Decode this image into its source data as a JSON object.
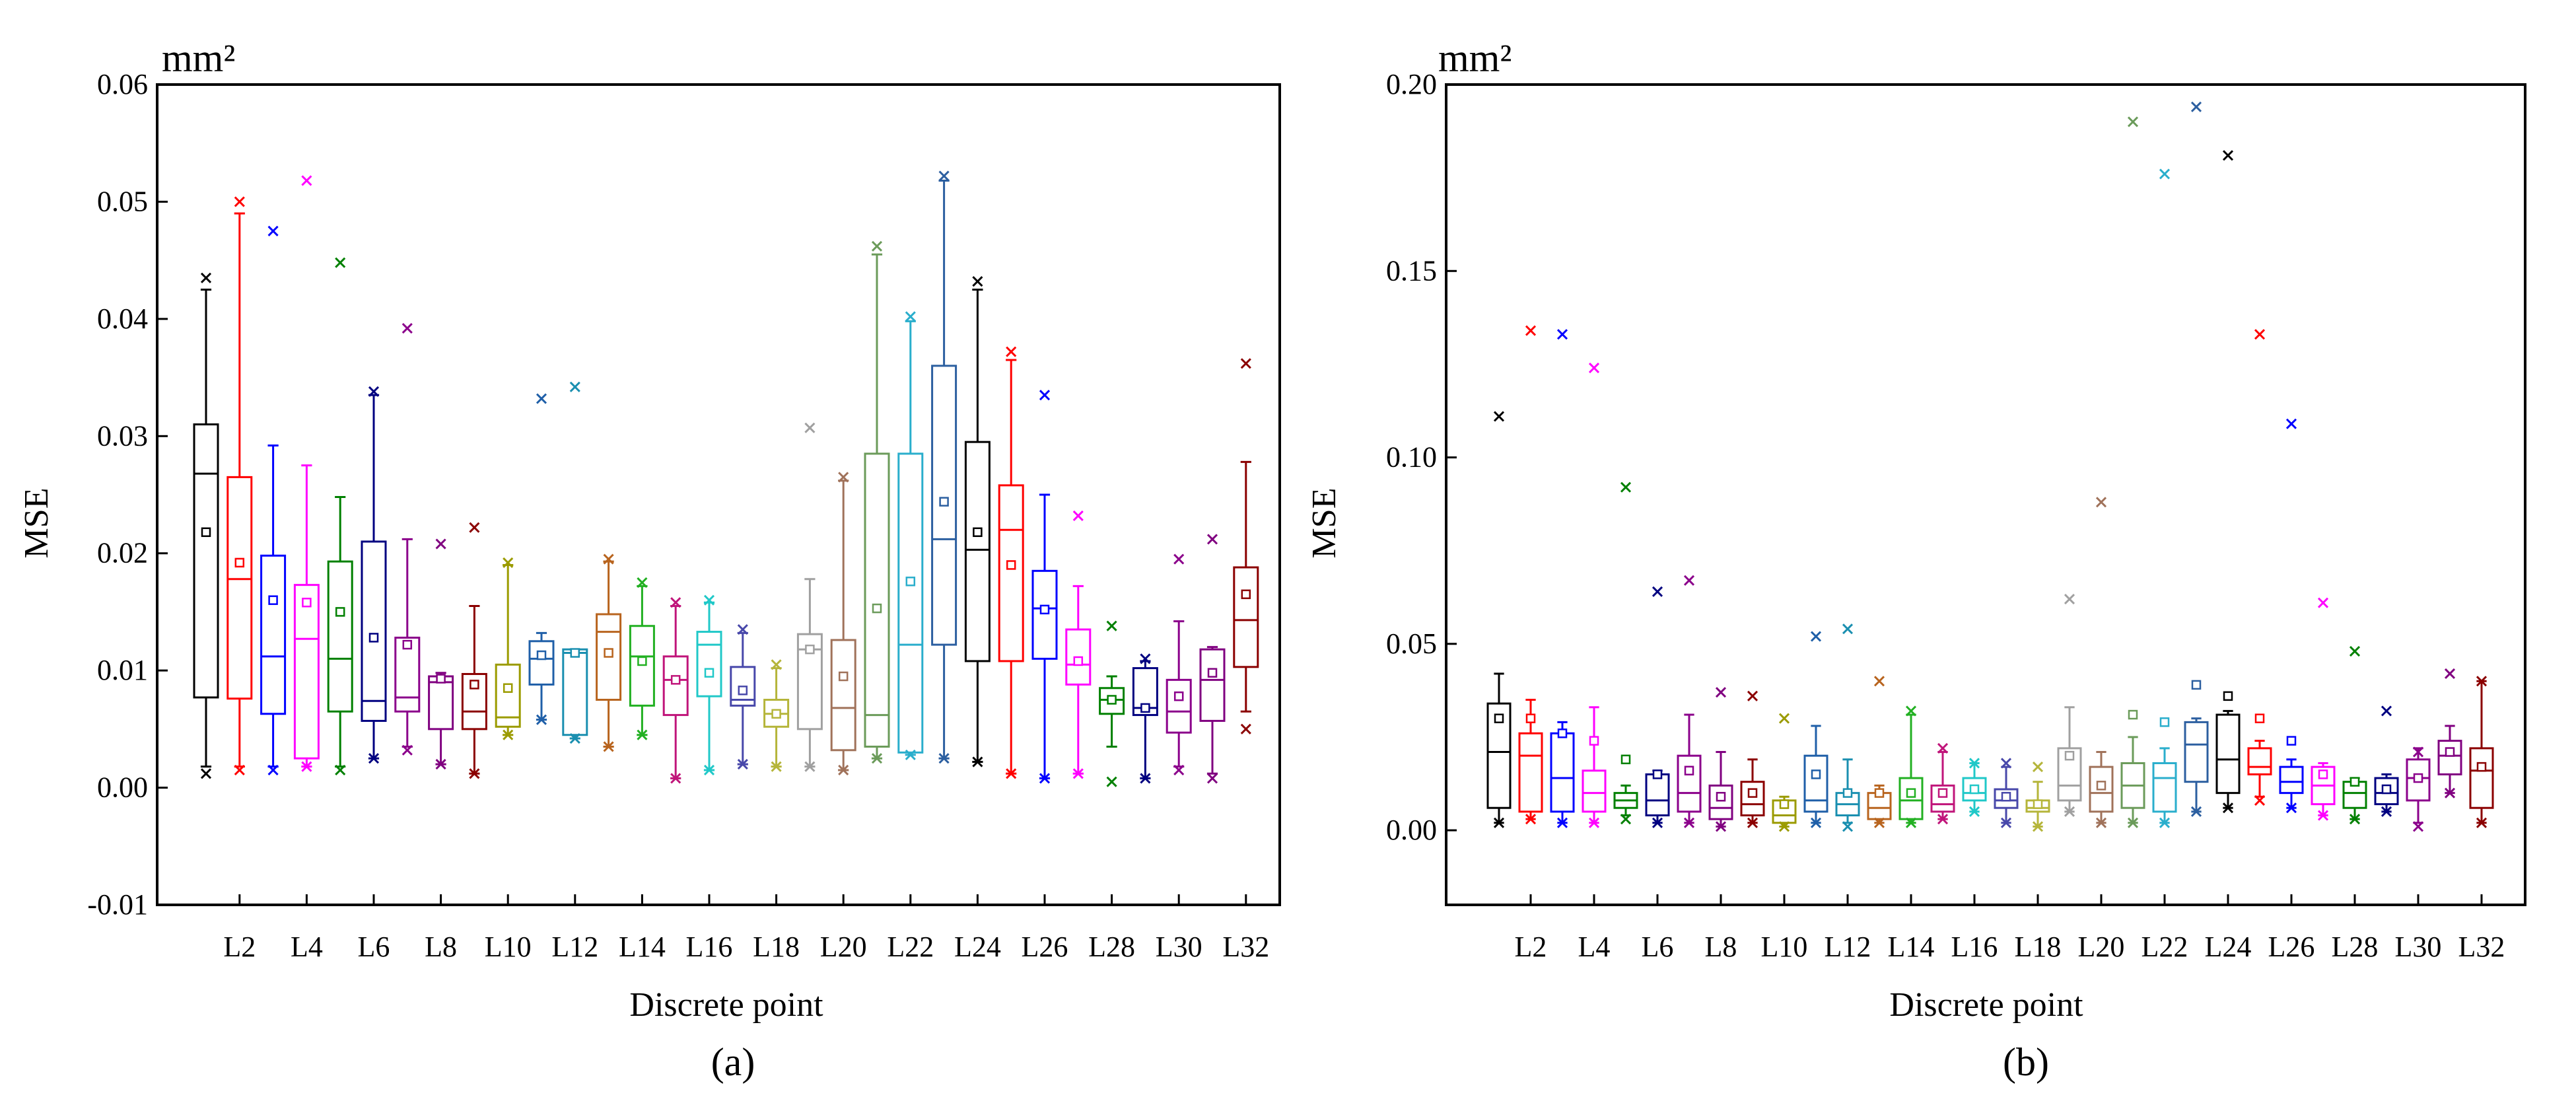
{
  "chart_data": [
    {
      "type": "box",
      "panel_label": "(a)",
      "unit": "mm²",
      "xlabel": "Discrete point",
      "ylabel": "MSE",
      "ylim": [
        -0.01,
        0.06
      ],
      "yticks": [
        "-0.01",
        "0.00",
        "0.01",
        "0.02",
        "0.03",
        "0.04",
        "0.05",
        "0.06"
      ],
      "ytick_values": [
        -0.01,
        0,
        0.01,
        0.02,
        0.03,
        0.04,
        0.05,
        0.06
      ],
      "xtick_labels": [
        "L2",
        "L4",
        "L6",
        "L8",
        "L10",
        "L12",
        "L14",
        "L16",
        "L18",
        "L20",
        "L22",
        "L24",
        "L26",
        "L28",
        "L30",
        "L32"
      ],
      "boxes": [
        {
          "color": "#000000",
          "q1": 0.0077,
          "median": 0.0268,
          "q3": 0.031,
          "wlo": 0.0018,
          "whi": 0.0425,
          "mean": 0.0218,
          "min": 0.0012,
          "max": 0.0435
        },
        {
          "color": "#ff0000",
          "q1": 0.0076,
          "median": 0.0178,
          "q3": 0.0265,
          "wlo": 0.0018,
          "whi": 0.049,
          "mean": 0.0192,
          "min": 0.0015,
          "max": 0.05
        },
        {
          "color": "#0000ff",
          "q1": 0.0063,
          "median": 0.0112,
          "q3": 0.0198,
          "wlo": 0.0018,
          "whi": 0.0292,
          "mean": 0.016,
          "min": 0.0015,
          "max": 0.0475
        },
        {
          "color": "#ff00ff",
          "q1": 0.0025,
          "median": 0.0127,
          "q3": 0.0173,
          "wlo": 0.0018,
          "whi": 0.0275,
          "mean": 0.0158,
          "min": 0.0018,
          "max": 0.0518
        },
        {
          "color": "#008000",
          "q1": 0.0065,
          "median": 0.011,
          "q3": 0.0193,
          "wlo": 0.0018,
          "whi": 0.0248,
          "mean": 0.015,
          "min": 0.0015,
          "max": 0.0448
        },
        {
          "color": "#000080",
          "q1": 0.0057,
          "median": 0.0074,
          "q3": 0.021,
          "wlo": 0.0025,
          "whi": 0.0335,
          "mean": 0.0128,
          "min": 0.0025,
          "max": 0.0338
        },
        {
          "color": "#8b008b",
          "q1": 0.0065,
          "median": 0.0077,
          "q3": 0.0128,
          "wlo": 0.0035,
          "whi": 0.0212,
          "mean": 0.0122,
          "min": 0.0032,
          "max": 0.0392
        },
        {
          "color": "#800080",
          "q1": 0.005,
          "median": 0.009,
          "q3": 0.0095,
          "wlo": 0.002,
          "whi": 0.0098,
          "mean": 0.0093,
          "min": 0.002,
          "max": 0.0208
        },
        {
          "color": "#8b0000",
          "q1": 0.005,
          "median": 0.0065,
          "q3": 0.0097,
          "wlo": 0.0012,
          "whi": 0.0155,
          "mean": 0.0088,
          "min": 0.0012,
          "max": 0.0222
        },
        {
          "color": "#9b9b00",
          "q1": 0.0052,
          "median": 0.006,
          "q3": 0.0105,
          "wlo": 0.0045,
          "whi": 0.019,
          "mean": 0.0085,
          "min": 0.0045,
          "max": 0.0192
        },
        {
          "color": "#1f5fa8",
          "q1": 0.0088,
          "median": 0.011,
          "q3": 0.0125,
          "wlo": 0.0058,
          "whi": 0.0132,
          "mean": 0.0113,
          "min": 0.0058,
          "max": 0.0332
        },
        {
          "color": "#1a8fb0",
          "q1": 0.0045,
          "median": 0.0115,
          "q3": 0.0118,
          "wlo": 0.0042,
          "whi": 0.0118,
          "mean": 0.0115,
          "min": 0.0042,
          "max": 0.0342
        },
        {
          "color": "#b8641e",
          "q1": 0.0075,
          "median": 0.0133,
          "q3": 0.0148,
          "wlo": 0.0035,
          "whi": 0.0193,
          "mean": 0.0115,
          "min": 0.0035,
          "max": 0.0195
        },
        {
          "color": "#22b022",
          "q1": 0.007,
          "median": 0.0112,
          "q3": 0.0138,
          "wlo": 0.0045,
          "whi": 0.0172,
          "mean": 0.0108,
          "min": 0.0045,
          "max": 0.0175
        },
        {
          "color": "#c0157a",
          "q1": 0.0062,
          "median": 0.0092,
          "q3": 0.0112,
          "wlo": 0.0008,
          "whi": 0.0155,
          "mean": 0.0092,
          "min": 0.0008,
          "max": 0.0158
        },
        {
          "color": "#20c8c8",
          "q1": 0.0078,
          "median": 0.0122,
          "q3": 0.0133,
          "wlo": 0.0015,
          "whi": 0.0158,
          "mean": 0.0098,
          "min": 0.0015,
          "max": 0.016
        },
        {
          "color": "#4848aa",
          "q1": 0.007,
          "median": 0.0075,
          "q3": 0.0103,
          "wlo": 0.002,
          "whi": 0.0132,
          "mean": 0.0083,
          "min": 0.002,
          "max": 0.0135
        },
        {
          "color": "#b5b53a",
          "q1": 0.0052,
          "median": 0.0063,
          "q3": 0.0075,
          "wlo": 0.0018,
          "whi": 0.0102,
          "mean": 0.0063,
          "min": 0.0018,
          "max": 0.0105
        },
        {
          "color": "#a0a0a0",
          "q1": 0.005,
          "median": 0.0118,
          "q3": 0.0131,
          "wlo": 0.0018,
          "whi": 0.0178,
          "mean": 0.0118,
          "min": 0.0018,
          "max": 0.0307
        },
        {
          "color": "#a0725a",
          "q1": 0.0032,
          "median": 0.0068,
          "q3": 0.0126,
          "wlo": 0.0015,
          "whi": 0.0262,
          "mean": 0.0095,
          "min": 0.0015,
          "max": 0.0265
        },
        {
          "color": "#6b9b5a",
          "q1": 0.0035,
          "median": 0.0062,
          "q3": 0.0285,
          "wlo": 0.0025,
          "whi": 0.0455,
          "mean": 0.0153,
          "min": 0.0025,
          "max": 0.0462
        },
        {
          "color": "#2aaecc",
          "q1": 0.003,
          "median": 0.0122,
          "q3": 0.0285,
          "wlo": 0.0028,
          "whi": 0.0398,
          "mean": 0.0176,
          "min": 0.0028,
          "max": 0.0402
        },
        {
          "color": "#2c5fa0",
          "q1": 0.0122,
          "median": 0.0212,
          "q3": 0.036,
          "wlo": 0.0025,
          "whi": 0.0518,
          "mean": 0.0244,
          "min": 0.0025,
          "max": 0.0522
        },
        {
          "color": "#000000",
          "q1": 0.0108,
          "median": 0.0203,
          "q3": 0.0295,
          "wlo": 0.0022,
          "whi": 0.0425,
          "mean": 0.0218,
          "min": 0.0022,
          "max": 0.0432
        },
        {
          "color": "#ff0000",
          "q1": 0.0108,
          "median": 0.022,
          "q3": 0.0258,
          "wlo": 0.0012,
          "whi": 0.0365,
          "mean": 0.019,
          "min": 0.0012,
          "max": 0.0372
        },
        {
          "color": "#0000ff",
          "q1": 0.011,
          "median": 0.0153,
          "q3": 0.0185,
          "wlo": 0.0008,
          "whi": 0.025,
          "mean": 0.0152,
          "min": 0.0008,
          "max": 0.0335
        },
        {
          "color": "#ff00ff",
          "q1": 0.0088,
          "median": 0.0105,
          "q3": 0.0135,
          "wlo": 0.0012,
          "whi": 0.0172,
          "mean": 0.0108,
          "min": 0.0012,
          "max": 0.0232
        },
        {
          "color": "#008000",
          "q1": 0.0063,
          "median": 0.0075,
          "q3": 0.0085,
          "wlo": 0.0035,
          "whi": 0.0095,
          "mean": 0.0075,
          "min": 0.0005,
          "max": 0.0138
        },
        {
          "color": "#000080",
          "q1": 0.0062,
          "median": 0.0068,
          "q3": 0.0102,
          "wlo": 0.0008,
          "whi": 0.0108,
          "mean": 0.0068,
          "min": 0.0008,
          "max": 0.011
        },
        {
          "color": "#8b008b",
          "q1": 0.0047,
          "median": 0.0065,
          "q3": 0.0092,
          "wlo": 0.0018,
          "whi": 0.0142,
          "mean": 0.0078,
          "min": 0.0015,
          "max": 0.0195
        },
        {
          "color": "#800080",
          "q1": 0.0057,
          "median": 0.0092,
          "q3": 0.0118,
          "wlo": 0.0012,
          "whi": 0.012,
          "mean": 0.0098,
          "min": 0.0008,
          "max": 0.0212
        },
        {
          "color": "#8b0000",
          "q1": 0.0103,
          "median": 0.0143,
          "q3": 0.0188,
          "wlo": 0.0065,
          "whi": 0.0278,
          "mean": 0.0165,
          "min": 0.005,
          "max": 0.0362
        }
      ]
    },
    {
      "type": "box",
      "panel_label": "(b)",
      "unit": "mm²",
      "xlabel": "Discrete point",
      "ylabel": "MSE",
      "ylim": [
        -0.02,
        0.2
      ],
      "yticks": [
        "0.00",
        "0.05",
        "0.10",
        "0.15",
        "0.20"
      ],
      "ytick_values": [
        0,
        0.05,
        0.1,
        0.15,
        0.2
      ],
      "xtick_labels": [
        "L2",
        "L4",
        "L6",
        "L8",
        "L10",
        "L12",
        "L14",
        "L16",
        "L18",
        "L20",
        "L22",
        "L24",
        "L26",
        "L28",
        "L30",
        "L32"
      ],
      "boxes": [
        {
          "color": "#000000",
          "q1": 0.006,
          "median": 0.021,
          "q3": 0.034,
          "wlo": 0.002,
          "whi": 0.042,
          "mean": 0.03,
          "min": 0.002,
          "max": 0.111
        },
        {
          "color": "#ff0000",
          "q1": 0.005,
          "median": 0.02,
          "q3": 0.026,
          "wlo": 0.003,
          "whi": 0.035,
          "mean": 0.03,
          "min": 0.003,
          "max": 0.134
        },
        {
          "color": "#0000ff",
          "q1": 0.005,
          "median": 0.014,
          "q3": 0.026,
          "wlo": 0.002,
          "whi": 0.029,
          "mean": 0.026,
          "min": 0.002,
          "max": 0.133
        },
        {
          "color": "#ff00ff",
          "q1": 0.005,
          "median": 0.01,
          "q3": 0.016,
          "wlo": 0.002,
          "whi": 0.033,
          "mean": 0.024,
          "min": 0.002,
          "max": 0.124
        },
        {
          "color": "#008000",
          "q1": 0.006,
          "median": 0.008,
          "q3": 0.01,
          "wlo": 0.004,
          "whi": 0.012,
          "mean": 0.019,
          "min": 0.003,
          "max": 0.092
        },
        {
          "color": "#000080",
          "q1": 0.004,
          "median": 0.008,
          "q3": 0.015,
          "wlo": 0.002,
          "whi": 0.016,
          "mean": 0.015,
          "min": 0.002,
          "max": 0.064
        },
        {
          "color": "#8b008b",
          "q1": 0.005,
          "median": 0.01,
          "q3": 0.02,
          "wlo": 0.002,
          "whi": 0.031,
          "mean": 0.016,
          "min": 0.002,
          "max": 0.067
        },
        {
          "color": "#800080",
          "q1": 0.003,
          "median": 0.006,
          "q3": 0.012,
          "wlo": 0.001,
          "whi": 0.021,
          "mean": 0.009,
          "min": 0.001,
          "max": 0.037
        },
        {
          "color": "#8b0000",
          "q1": 0.004,
          "median": 0.007,
          "q3": 0.013,
          "wlo": 0.002,
          "whi": 0.019,
          "mean": 0.01,
          "min": 0.002,
          "max": 0.036
        },
        {
          "color": "#9b9b00",
          "q1": 0.002,
          "median": 0.004,
          "q3": 0.008,
          "wlo": 0.001,
          "whi": 0.009,
          "mean": 0.007,
          "min": 0.001,
          "max": 0.03
        },
        {
          "color": "#1f5fa8",
          "q1": 0.005,
          "median": 0.008,
          "q3": 0.02,
          "wlo": 0.002,
          "whi": 0.028,
          "mean": 0.015,
          "min": 0.002,
          "max": 0.052
        },
        {
          "color": "#1a8fb0",
          "q1": 0.004,
          "median": 0.007,
          "q3": 0.01,
          "wlo": 0.002,
          "whi": 0.019,
          "mean": 0.01,
          "min": 0.001,
          "max": 0.054
        },
        {
          "color": "#b8641e",
          "q1": 0.003,
          "median": 0.006,
          "q3": 0.01,
          "wlo": 0.002,
          "whi": 0.012,
          "mean": 0.01,
          "min": 0.002,
          "max": 0.04
        },
        {
          "color": "#22b022",
          "q1": 0.003,
          "median": 0.008,
          "q3": 0.014,
          "wlo": 0.002,
          "whi": 0.031,
          "mean": 0.01,
          "min": 0.002,
          "max": 0.032
        },
        {
          "color": "#c0157a",
          "q1": 0.005,
          "median": 0.007,
          "q3": 0.012,
          "wlo": 0.003,
          "whi": 0.021,
          "mean": 0.01,
          "min": 0.003,
          "max": 0.022
        },
        {
          "color": "#20c8c8",
          "q1": 0.008,
          "median": 0.01,
          "q3": 0.014,
          "wlo": 0.005,
          "whi": 0.018,
          "mean": 0.011,
          "min": 0.005,
          "max": 0.018
        },
        {
          "color": "#4848aa",
          "q1": 0.006,
          "median": 0.008,
          "q3": 0.011,
          "wlo": 0.002,
          "whi": 0.017,
          "mean": 0.009,
          "min": 0.002,
          "max": 0.018
        },
        {
          "color": "#b5b53a",
          "q1": 0.005,
          "median": 0.006,
          "q3": 0.008,
          "wlo": 0.001,
          "whi": 0.013,
          "mean": 0.007,
          "min": 0.001,
          "max": 0.017
        },
        {
          "color": "#a0a0a0",
          "q1": 0.008,
          "median": 0.012,
          "q3": 0.022,
          "wlo": 0.005,
          "whi": 0.033,
          "mean": 0.02,
          "min": 0.005,
          "max": 0.062
        },
        {
          "color": "#a0725a",
          "q1": 0.005,
          "median": 0.01,
          "q3": 0.017,
          "wlo": 0.002,
          "whi": 0.021,
          "mean": 0.012,
          "min": 0.002,
          "max": 0.088
        },
        {
          "color": "#6b9b5a",
          "q1": 0.006,
          "median": 0.012,
          "q3": 0.018,
          "wlo": 0.002,
          "whi": 0.025,
          "mean": 0.031,
          "min": 0.002,
          "max": 0.19
        },
        {
          "color": "#2aaecc",
          "q1": 0.005,
          "median": 0.014,
          "q3": 0.018,
          "wlo": 0.002,
          "whi": 0.022,
          "mean": 0.029,
          "min": 0.002,
          "max": 0.176
        },
        {
          "color": "#2c5fa0",
          "q1": 0.013,
          "median": 0.023,
          "q3": 0.029,
          "wlo": 0.005,
          "whi": 0.03,
          "mean": 0.039,
          "min": 0.005,
          "max": 0.194
        },
        {
          "color": "#000000",
          "q1": 0.01,
          "median": 0.019,
          "q3": 0.031,
          "wlo": 0.006,
          "whi": 0.032,
          "mean": 0.036,
          "min": 0.006,
          "max": 0.181
        },
        {
          "color": "#ff0000",
          "q1": 0.015,
          "median": 0.017,
          "q3": 0.022,
          "wlo": 0.009,
          "whi": 0.024,
          "mean": 0.03,
          "min": 0.008,
          "max": 0.133
        },
        {
          "color": "#0000ff",
          "q1": 0.01,
          "median": 0.013,
          "q3": 0.017,
          "wlo": 0.006,
          "whi": 0.019,
          "mean": 0.024,
          "min": 0.006,
          "max": 0.109
        },
        {
          "color": "#ff00ff",
          "q1": 0.007,
          "median": 0.012,
          "q3": 0.017,
          "wlo": 0.004,
          "whi": 0.018,
          "mean": 0.015,
          "min": 0.004,
          "max": 0.061
        },
        {
          "color": "#008000",
          "q1": 0.006,
          "median": 0.01,
          "q3": 0.013,
          "wlo": 0.003,
          "whi": 0.014,
          "mean": 0.013,
          "min": 0.003,
          "max": 0.048
        },
        {
          "color": "#000080",
          "q1": 0.007,
          "median": 0.01,
          "q3": 0.014,
          "wlo": 0.005,
          "whi": 0.015,
          "mean": 0.011,
          "min": 0.005,
          "max": 0.032
        },
        {
          "color": "#8b008b",
          "q1": 0.008,
          "median": 0.014,
          "q3": 0.019,
          "wlo": 0.002,
          "whi": 0.022,
          "mean": 0.014,
          "min": 0.001,
          "max": 0.021
        },
        {
          "color": "#800080",
          "q1": 0.015,
          "median": 0.02,
          "q3": 0.024,
          "wlo": 0.01,
          "whi": 0.028,
          "mean": 0.021,
          "min": 0.01,
          "max": 0.042
        },
        {
          "color": "#8b0000",
          "q1": 0.006,
          "median": 0.016,
          "q3": 0.022,
          "wlo": 0.002,
          "whi": 0.04,
          "mean": 0.017,
          "min": 0.002,
          "max": 0.04
        }
      ]
    }
  ]
}
